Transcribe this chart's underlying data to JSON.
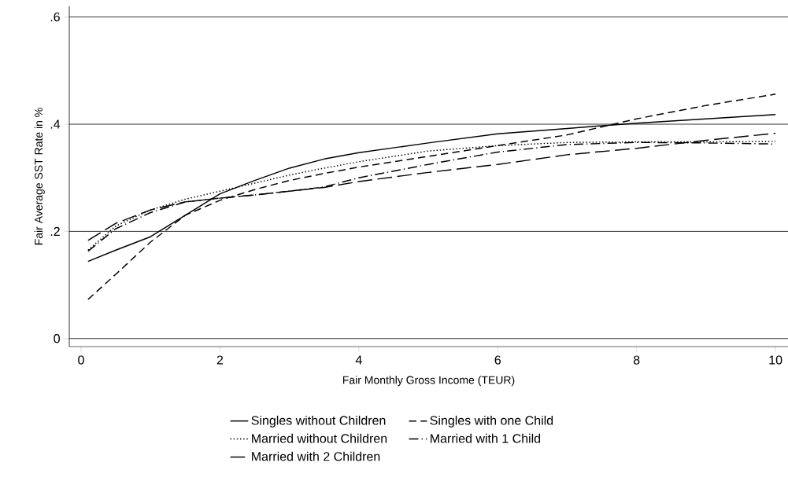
{
  "chart_data": {
    "type": "line",
    "xlabel": "Fair Monthly Gross Income (TEUR)",
    "ylabel": "Fair Average SST Rate in %",
    "xlim": [
      -0.17,
      10.18
    ],
    "ylim": [
      -0.015,
      0.62
    ],
    "xticks": [
      0,
      2,
      4,
      6,
      8,
      10
    ],
    "yticks": [
      {
        "value": 0,
        "label": "0"
      },
      {
        "value": 0.2,
        "label": ".2"
      },
      {
        "value": 0.4,
        "label": ".4"
      },
      {
        "value": 0.6,
        "label": ".6"
      }
    ],
    "grid": "y",
    "legend": "bottom",
    "x": [
      0.1,
      0.5,
      1,
      1.5,
      2,
      2.5,
      3,
      3.5,
      4,
      5,
      6,
      7,
      8,
      9,
      10
    ],
    "series": [
      {
        "name": "Singles without Children",
        "color": "#000000",
        "line_style": "solid",
        "values": [
          0.144,
          0.165,
          0.19,
          0.23,
          0.27,
          0.295,
          0.318,
          0.335,
          0.347,
          0.365,
          0.382,
          0.392,
          0.402,
          0.41,
          0.418
        ]
      },
      {
        "name": "Singles with one Child",
        "color": "#000000",
        "line_style": "dashed",
        "values": [
          0.073,
          0.12,
          0.18,
          0.23,
          0.258,
          0.278,
          0.295,
          0.308,
          0.32,
          0.34,
          0.36,
          0.38,
          0.41,
          0.435,
          0.456
        ]
      },
      {
        "name": "Married without Children",
        "color": "#000000",
        "line_style": "dotted",
        "values": [
          0.165,
          0.21,
          0.24,
          0.26,
          0.275,
          0.29,
          0.305,
          0.318,
          0.33,
          0.35,
          0.36,
          0.366,
          0.367,
          0.367,
          0.368
        ]
      },
      {
        "name": "Married with 1 Child",
        "color": "#000000",
        "line_style": "dashdot",
        "values": [
          0.163,
          0.205,
          0.235,
          0.255,
          0.262,
          0.268,
          0.275,
          0.283,
          0.3,
          0.325,
          0.348,
          0.362,
          0.366,
          0.365,
          0.363
        ]
      },
      {
        "name": "Married with 2 Children",
        "color": "#000000",
        "line_style": "longdashed",
        "values": [
          0.183,
          0.215,
          0.24,
          0.255,
          0.262,
          0.268,
          0.275,
          0.282,
          0.293,
          0.31,
          0.325,
          0.343,
          0.355,
          0.37,
          0.383
        ]
      }
    ]
  }
}
